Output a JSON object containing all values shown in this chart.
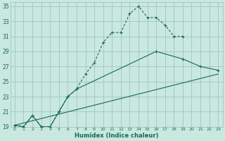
{
  "xlabel": "Humidex (Indice chaleur)",
  "bg_color": "#c8e8e0",
  "grid_color": "#9abfb8",
  "line_color": "#1a6858",
  "xlim": [
    0,
    23
  ],
  "ylim": [
    19,
    35
  ],
  "yticks": [
    19,
    21,
    23,
    25,
    27,
    29,
    31,
    33,
    35
  ],
  "xticks": [
    0,
    1,
    2,
    3,
    4,
    5,
    6,
    7,
    8,
    9,
    10,
    11,
    12,
    13,
    14,
    15,
    16,
    17,
    18,
    19,
    20,
    21,
    22,
    23
  ],
  "line1_x": [
    0,
    1,
    2,
    3,
    4,
    5,
    6,
    7,
    8,
    9,
    10,
    11,
    12,
    13,
    14,
    15,
    16,
    17,
    18,
    19
  ],
  "line1_y": [
    19.2,
    19.0,
    20.5,
    19.0,
    19.0,
    21.0,
    23.0,
    24.0,
    26.0,
    27.5,
    30.2,
    31.5,
    31.5,
    34.0,
    35.0,
    33.5,
    33.5,
    32.5,
    31.0,
    31.0
  ],
  "line2_x": [
    0,
    1,
    2,
    3,
    4,
    5,
    6,
    7,
    16,
    19,
    21,
    23
  ],
  "line2_y": [
    19.2,
    19.0,
    20.5,
    19.0,
    19.0,
    21.0,
    23.0,
    24.0,
    29.0,
    28.0,
    27.0,
    26.5
  ],
  "line3_x": [
    0,
    23
  ],
  "line3_y": [
    19.2,
    26.0
  ]
}
